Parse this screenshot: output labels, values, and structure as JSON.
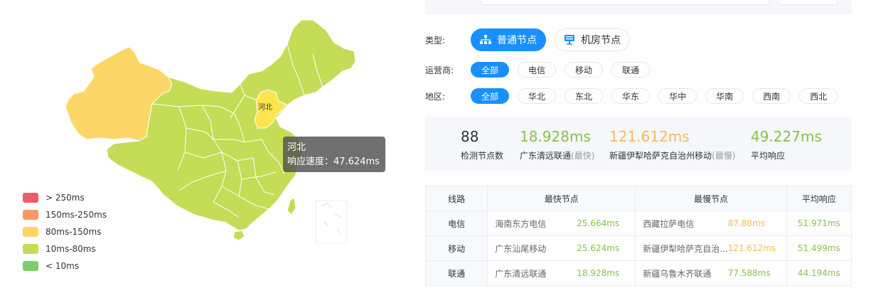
{
  "map": {
    "region_label": "河北",
    "tooltip": {
      "title": "河北",
      "line": "响应速度：47.624ms"
    },
    "colors": {
      "very_slow": "#ee5b6a",
      "slow": "#f99965",
      "medium": "#fcd768",
      "fast": "#c5dc57",
      "very_fast": "#7ccd6c",
      "highlight": "#ffe44d"
    },
    "legend": [
      {
        "label": "> 250ms",
        "color": "#ee5b6a"
      },
      {
        "label": "150ms-250ms",
        "color": "#f99965"
      },
      {
        "label": "80ms-150ms",
        "color": "#fcd768"
      },
      {
        "label": "10ms-80ms",
        "color": "#c5dc57"
      },
      {
        "label": "< 10ms",
        "color": "#7ccd6c"
      }
    ]
  },
  "filters": {
    "type": {
      "label": "类型:",
      "options": [
        {
          "label": "普通节点",
          "icon": "network-icon"
        },
        {
          "label": "机房节点",
          "icon": "monitor-icon"
        }
      ]
    },
    "isp": {
      "label": "运营商:",
      "options": [
        "全部",
        "电信",
        "移动",
        "联通"
      ]
    },
    "region": {
      "label": "地区:",
      "options": [
        "全部",
        "华北",
        "东北",
        "华东",
        "华中",
        "华南",
        "西南",
        "西北"
      ]
    }
  },
  "stats": {
    "count": {
      "value": "88",
      "label": "检测节点数"
    },
    "fastest": {
      "value": "18.928ms",
      "label": "广东清远联通",
      "suffix": "(最快)"
    },
    "slowest": {
      "value": "121.612ms",
      "label": "新疆伊犁哈萨克自治州移动",
      "suffix": "(最慢)"
    },
    "average": {
      "value": "49.227ms",
      "label": "平均响应"
    }
  },
  "table": {
    "headers": [
      "线路",
      "最快节点",
      "最慢节点",
      "平均响应"
    ],
    "rows": [
      {
        "line": "电信",
        "fast_name": "海南东方电信",
        "fast_ms": "25.664ms",
        "slow_name": "西藏拉萨电信",
        "slow_ms": "87.88ms",
        "avg": "51.971ms"
      },
      {
        "line": "移动",
        "fast_name": "广东汕尾移动",
        "fast_ms": "25.624ms",
        "slow_name": "新疆伊犁哈萨克自治...",
        "slow_ms": "121.612ms",
        "avg": "51.499ms"
      },
      {
        "line": "联通",
        "fast_name": "广东清远联通",
        "fast_ms": "18.928ms",
        "slow_name": "新疆乌鲁木齐联通",
        "slow_ms": "77.588ms",
        "avg": "44.194ms"
      }
    ]
  }
}
